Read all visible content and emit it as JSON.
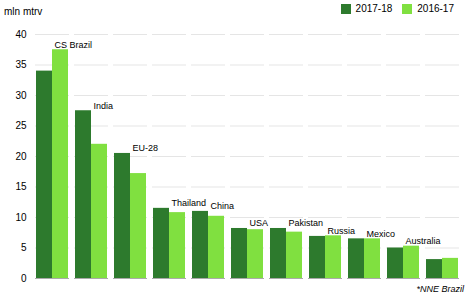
{
  "chart_data": {
    "type": "bar",
    "categories": [
      "CS Brazil",
      "India",
      "EU-28",
      "Thailand",
      "China",
      "USA",
      "Pakistan",
      "Russia",
      "Mexico",
      "Australia",
      null
    ],
    "series": [
      {
        "name": "2017-18",
        "color": "#2d7a2d",
        "values": [
          34.0,
          27.5,
          20.5,
          11.5,
          11.0,
          8.2,
          8.2,
          6.9,
          6.5,
          5.0,
          3.1
        ]
      },
      {
        "name": "2016-17",
        "color": "#80e040",
        "values": [
          37.5,
          22.0,
          17.2,
          10.8,
          10.2,
          8.0,
          7.6,
          7.0,
          6.5,
          5.3,
          3.3
        ]
      }
    ],
    "ylabel": "mln mtrv",
    "annotations": [
      "*NNE Brazil"
    ],
    "ylim": [
      0,
      40
    ],
    "yticks": [
      0,
      5,
      10,
      15,
      20,
      25,
      30,
      35,
      40
    ],
    "grid": true,
    "legend": "top-right",
    "tick_labels": "y"
  }
}
